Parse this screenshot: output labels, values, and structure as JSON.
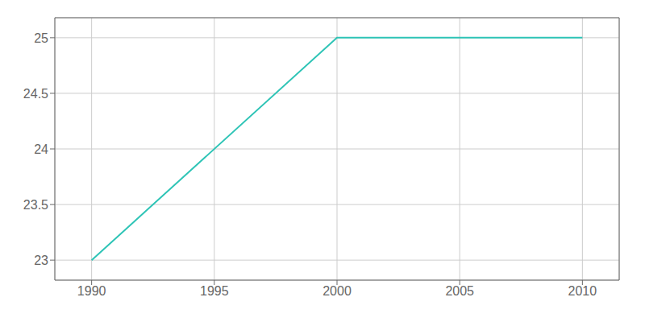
{
  "chart_data": {
    "type": "line",
    "x": [
      1990,
      2000,
      2010
    ],
    "values": [
      23,
      25,
      25
    ],
    "color": "#2ec4b6",
    "xlim": [
      1988.5,
      2011.5
    ],
    "ylim": [
      22.82,
      25.18
    ],
    "xticks": [
      1990,
      1995,
      2000,
      2005,
      2010
    ],
    "yticks": [
      23,
      23.5,
      24,
      24.5,
      25
    ],
    "grid": true
  }
}
